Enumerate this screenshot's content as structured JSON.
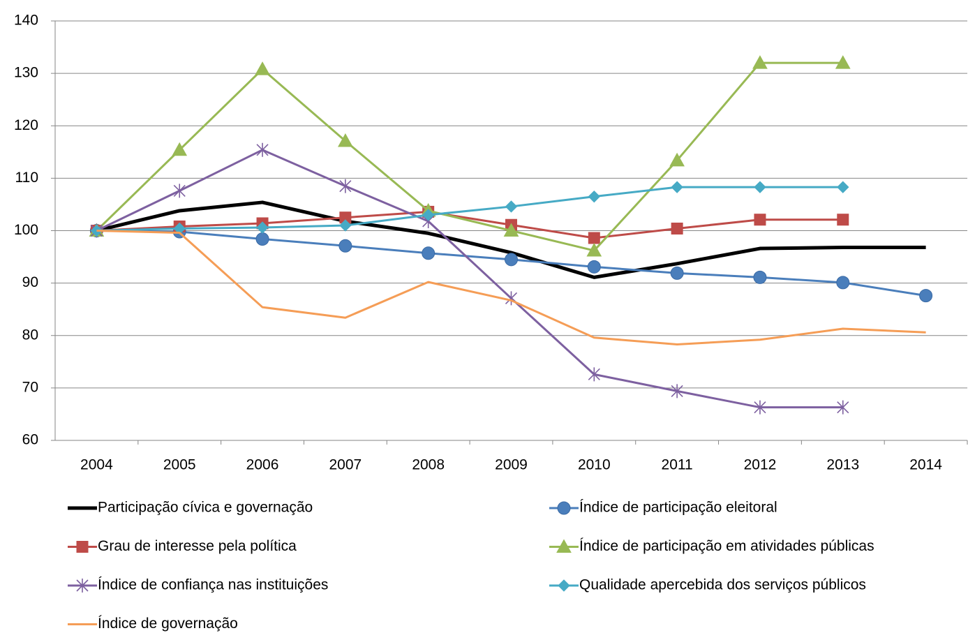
{
  "chart_data": {
    "type": "line",
    "categories": [
      "2004",
      "2005",
      "2006",
      "2007",
      "2008",
      "2009",
      "2010",
      "2011",
      "2012",
      "2013",
      "2014"
    ],
    "ylim": [
      60,
      140
    ],
    "yticks": [
      60,
      70,
      80,
      90,
      100,
      110,
      120,
      130,
      140
    ],
    "grid": true,
    "series": [
      {
        "name": "Participação cívica e governação",
        "color": "#000000",
        "width": 5,
        "marker": "none",
        "values": [
          100,
          103.8,
          105.4,
          101.8,
          99.5,
          95.8,
          91.1,
          93.7,
          96.6,
          96.8,
          96.8
        ]
      },
      {
        "name": "Índice de participação eleitoral",
        "color": "#4a7ebb",
        "width": 3,
        "marker": "circle",
        "values": [
          100,
          99.8,
          98.4,
          97.1,
          95.7,
          94.5,
          93.1,
          91.9,
          91.1,
          90.1,
          87.6
        ]
      },
      {
        "name": "Grau de interesse pela política",
        "color": "#be4b48",
        "width": 3,
        "marker": "square",
        "values": [
          100,
          100.8,
          101.4,
          102.5,
          103.6,
          101.1,
          98.6,
          100.4,
          102.1,
          102.1,
          null
        ]
      },
      {
        "name": "Índice de participação em atividades públicas",
        "color": "#98b954",
        "width": 3,
        "marker": "triangle",
        "values": [
          100,
          115.4,
          130.8,
          117.1,
          103.8,
          100,
          96.2,
          113.4,
          132,
          132,
          null
        ]
      },
      {
        "name": "Índice de confiança nas instituições",
        "color": "#7d60a0",
        "width": 3,
        "marker": "star",
        "values": [
          100,
          107.6,
          115.4,
          108.5,
          101.8,
          87.1,
          72.6,
          69.4,
          66.3,
          66.3,
          null
        ]
      },
      {
        "name": "Qualidade apercebida dos serviços públicos",
        "color": "#46aac5",
        "width": 3,
        "marker": "diamond",
        "values": [
          100,
          100.4,
          100.6,
          101,
          103,
          104.6,
          106.5,
          108.3,
          108.3,
          108.3,
          null
        ]
      },
      {
        "name": "Índice de governação",
        "color": "#f59d56",
        "width": 3,
        "marker": "none",
        "values": [
          100,
          99.6,
          85.4,
          83.4,
          90.2,
          86.7,
          79.6,
          78.3,
          79.2,
          81.3,
          80.6
        ]
      }
    ]
  }
}
